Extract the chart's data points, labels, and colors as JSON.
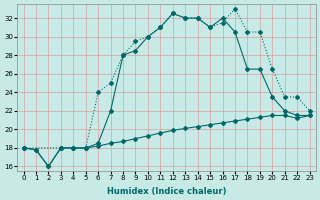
{
  "xlabel": "Humidex (Indice chaleur)",
  "xlim": [
    -0.5,
    23.5
  ],
  "ylim": [
    15.5,
    33.5
  ],
  "xticks": [
    0,
    1,
    2,
    3,
    4,
    5,
    6,
    7,
    8,
    9,
    10,
    11,
    12,
    13,
    14,
    15,
    16,
    17,
    18,
    19,
    20,
    21,
    22,
    23
  ],
  "yticks": [
    16,
    18,
    20,
    22,
    24,
    26,
    28,
    30,
    32
  ],
  "bg_color": "#c8eae6",
  "grid_color": "#d4a0a0",
  "line_color": "#006868",
  "line1_x": [
    0,
    1,
    2,
    3,
    4,
    5,
    6,
    7,
    8,
    9,
    10,
    11,
    12,
    13,
    14,
    15,
    16,
    17,
    18,
    19,
    20,
    21,
    22,
    23
  ],
  "line1_y": [
    18.0,
    17.8,
    16.0,
    18.0,
    18.0,
    18.0,
    18.2,
    18.5,
    18.7,
    19.0,
    19.3,
    19.6,
    19.9,
    20.1,
    20.3,
    20.5,
    20.7,
    20.9,
    21.1,
    21.3,
    21.5,
    21.5,
    21.2,
    21.5
  ],
  "line2_x": [
    0,
    1,
    2,
    3,
    4,
    5,
    6,
    7,
    8,
    9,
    10,
    11,
    12,
    13,
    14,
    15,
    16,
    17,
    18,
    19,
    20,
    21,
    22,
    23
  ],
  "line2_y": [
    18.0,
    17.8,
    16.0,
    18.0,
    18.0,
    18.0,
    18.5,
    22.0,
    28.0,
    28.5,
    30.0,
    31.0,
    32.5,
    32.0,
    32.0,
    31.0,
    32.0,
    30.5,
    26.5,
    26.5,
    23.5,
    22.0,
    21.5,
    21.5
  ],
  "line3_x": [
    0,
    3,
    4,
    5,
    6,
    7,
    8,
    9,
    10,
    11,
    12,
    13,
    14,
    15,
    16,
    17,
    18,
    19,
    20,
    21,
    22,
    23
  ],
  "line3_y": [
    18.0,
    18.0,
    18.0,
    18.0,
    24.0,
    25.0,
    28.0,
    29.5,
    30.0,
    31.0,
    32.5,
    32.0,
    32.0,
    31.0,
    31.5,
    33.0,
    30.5,
    30.5,
    26.5,
    23.5,
    23.5,
    22.0
  ]
}
